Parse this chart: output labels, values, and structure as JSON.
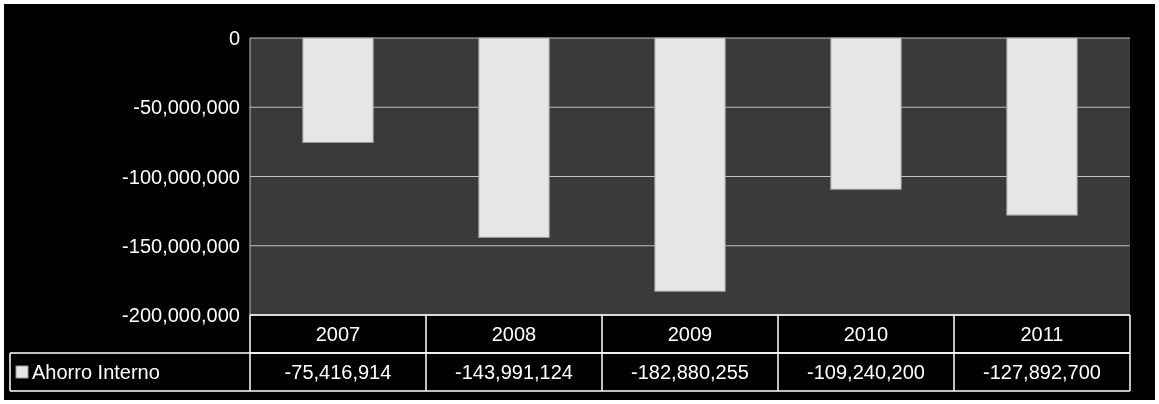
{
  "chart_data": {
    "type": "bar",
    "categories": [
      "2007",
      "2008",
      "2009",
      "2010",
      "2011"
    ],
    "series": [
      {
        "name": "Ahorro Interno",
        "color": "#e6e6e6",
        "values": [
          -75416914,
          -143991124,
          -182880255,
          -109240200,
          -127892700
        ],
        "value_labels": [
          "-75,416,914",
          "-143,991,124",
          "-182,880,255",
          "-109,240,200",
          "-127,892,700"
        ]
      }
    ],
    "ylim": [
      -200000000,
      0
    ],
    "yticks": [
      0,
      {
        "value": -50000000,
        "label": "-50,000,000"
      },
      {
        "value": -100000000,
        "label": "-100,000,000"
      },
      {
        "value": -150000000,
        "label": "-150,000,000"
      },
      {
        "value": -200000000,
        "label": "-200,000,000"
      }
    ],
    "grid": true,
    "legend": "bottom"
  }
}
